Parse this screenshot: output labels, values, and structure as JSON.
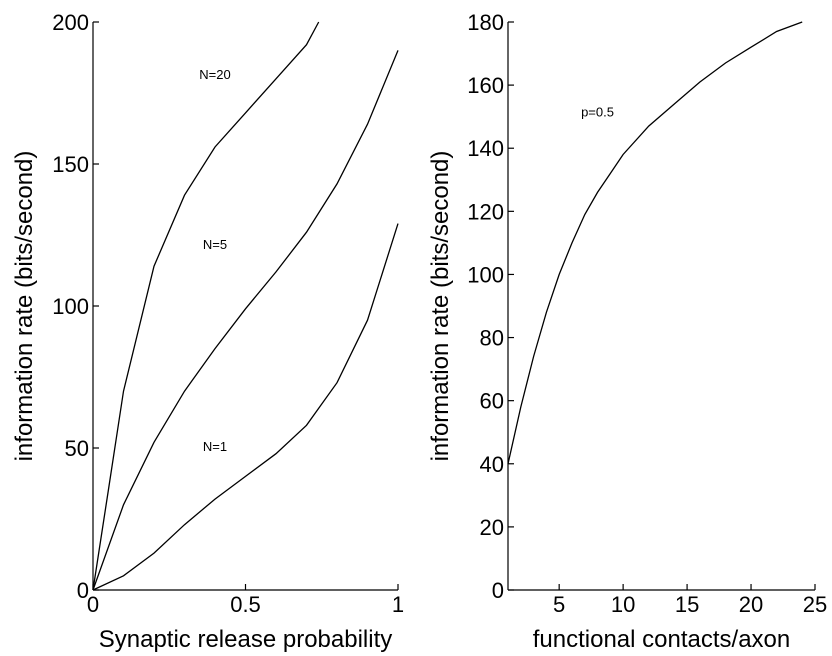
{
  "chart_data": [
    {
      "type": "line",
      "title": "",
      "xlabel": "Synaptic release probability",
      "ylabel": "information rate (bits/second)",
      "xlim": [
        0,
        1
      ],
      "ylim": [
        0,
        200
      ],
      "xticks": [
        0,
        0.5,
        1
      ],
      "xtick_labels": [
        "0",
        "0.5",
        "1"
      ],
      "yticks": [
        0,
        50,
        100,
        150,
        200
      ],
      "ytick_labels": [
        "0",
        "50",
        "100",
        "150",
        "200"
      ],
      "grid": false,
      "series": [
        {
          "x": [
            0,
            0.05,
            0.1,
            0.2,
            0.3,
            0.4,
            0.5,
            0.6,
            0.7,
            0.74
          ],
          "y": [
            0,
            35,
            70,
            114,
            139,
            156,
            168,
            180,
            192,
            200
          ]
        },
        {
          "x": [
            0,
            0.1,
            0.2,
            0.3,
            0.4,
            0.5,
            0.6,
            0.7,
            0.8,
            0.9,
            1.0
          ],
          "y": [
            0,
            30,
            52,
            70,
            85,
            99,
            112,
            126,
            143,
            164,
            190
          ]
        },
        {
          "x": [
            0,
            0.1,
            0.2,
            0.3,
            0.4,
            0.5,
            0.6,
            0.7,
            0.8,
            0.9,
            1.0
          ],
          "y": [
            0,
            5,
            13,
            23,
            32,
            40,
            48,
            58,
            73,
            95,
            129
          ]
        }
      ],
      "annotations": [
        {
          "text": "N=20",
          "x": 0.4,
          "y": 180
        },
        {
          "text": "N=5",
          "x": 0.4,
          "y": 120
        },
        {
          "text": "N=1",
          "x": 0.4,
          "y": 49
        }
      ]
    },
    {
      "type": "line",
      "title": "",
      "xlabel": "functional contacts/axon",
      "ylabel": "information rate (bits/second)",
      "xlim": [
        1,
        25
      ],
      "ylim": [
        0,
        180
      ],
      "xticks": [
        5,
        10,
        15,
        20,
        25
      ],
      "xtick_labels": [
        "5",
        "10",
        "15",
        "20",
        "25"
      ],
      "yticks": [
        0,
        20,
        40,
        60,
        80,
        100,
        120,
        140,
        160,
        180
      ],
      "ytick_labels": [
        "0",
        "20",
        "40",
        "60",
        "80",
        "100",
        "120",
        "140",
        "160",
        "180"
      ],
      "grid": false,
      "series": [
        {
          "x": [
            1,
            2,
            3,
            4,
            5,
            6,
            7,
            8,
            9,
            10,
            12,
            14,
            16,
            18,
            20,
            22,
            24
          ],
          "y": [
            40,
            58,
            74,
            88,
            100,
            110,
            119,
            126,
            132,
            138,
            147,
            154,
            161,
            167,
            172,
            177,
            180
          ]
        }
      ],
      "annotations": [
        {
          "text": "p=0.5",
          "x": 8,
          "y": 150
        }
      ]
    }
  ]
}
